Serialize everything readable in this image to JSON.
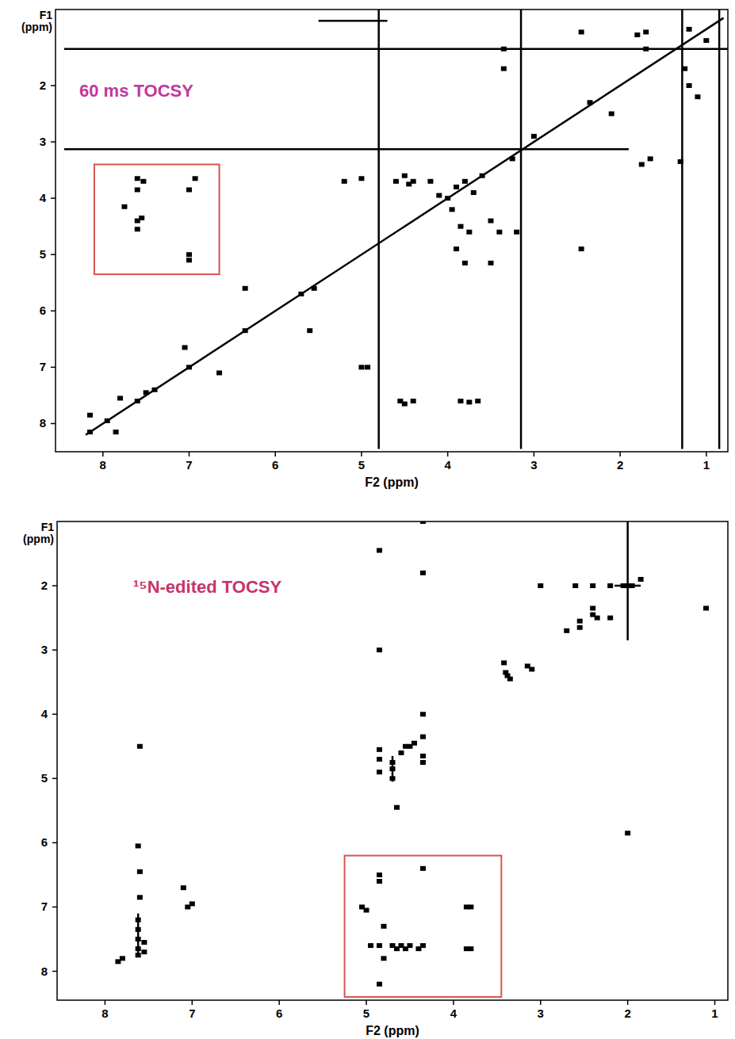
{
  "chart_data": [
    {
      "type": "scatter",
      "title": "60 ms TOCSY",
      "title_color": "#c2379e",
      "x_label": "F2 (ppm)",
      "y_label": "F1 (ppm)",
      "xlim": [
        8.55,
        0.75
      ],
      "ylim": [
        0.65,
        8.5
      ],
      "xticks": [
        8,
        7,
        6,
        5,
        4,
        3,
        2,
        1
      ],
      "yticks": [
        2,
        3,
        4,
        5,
        6,
        7,
        8
      ],
      "box": {
        "x": [
          8.1,
          6.65
        ],
        "y": [
          3.4,
          5.35
        ],
        "color": "#d9534f"
      },
      "series": [
        {
          "type": "scatter",
          "color": "#000000",
          "marker": "square",
          "x": [
            7.6,
            7.6,
            7.53,
            7.6,
            7.6,
            7.55,
            7.0,
            6.93,
            7.0,
            7.0,
            7.75,
            3.65,
            3.85,
            4.4,
            4.55,
            4.5,
            3.75,
            5.0,
            4.93,
            8.15,
            8.15,
            7.85,
            7.95,
            7.6,
            7.5,
            7.4,
            7.0,
            7.05,
            6.65,
            6.35,
            6.35,
            5.6,
            5.7,
            5.55,
            7.8,
            3.9,
            3.8,
            3.7,
            3.6,
            4.0,
            3.85,
            3.75,
            3.5,
            3.4,
            3.2,
            4.4,
            3.9,
            3.8,
            3.5,
            5.2,
            5.0,
            4.6,
            4.45,
            4.2,
            4.5,
            3.35,
            3.35,
            1.7,
            1.65,
            1.75,
            1.3,
            1.25,
            1.7,
            1.8,
            2.45,
            1.2,
            1.0,
            2.35,
            2.1,
            1.1,
            1.2,
            2.45,
            3.0,
            3.25,
            4.1,
            3.95
          ],
          "values": [
            3.65,
            3.85,
            3.7,
            4.4,
            4.55,
            4.35,
            3.85,
            3.65,
            5.0,
            5.1,
            4.15,
            7.6,
            7.6,
            7.6,
            7.6,
            7.65,
            7.62,
            7.0,
            7.0,
            8.15,
            7.85,
            8.15,
            7.95,
            7.6,
            7.45,
            7.4,
            7.0,
            6.65,
            7.1,
            6.35,
            5.6,
            6.35,
            5.7,
            5.6,
            7.55,
            3.8,
            3.7,
            3.9,
            3.6,
            4.0,
            4.5,
            4.6,
            4.4,
            4.6,
            4.6,
            3.7,
            4.9,
            5.15,
            5.15,
            3.7,
            3.65,
            3.7,
            3.75,
            3.7,
            3.6,
            1.7,
            1.35,
            1.35,
            3.3,
            3.4,
            3.35,
            1.7,
            1.05,
            1.1,
            1.05,
            1.0,
            1.2,
            2.3,
            2.5,
            2.2,
            2.0,
            4.9,
            2.9,
            3.3,
            3.95,
            4.2
          ]
        },
        {
          "type": "line",
          "color": "#000000",
          "line_style": "solid",
          "x": [
            8.2,
            0.8
          ],
          "values": [
            8.2,
            0.8
          ]
        },
        {
          "type": "line",
          "color": "#000000",
          "line_style": "solid",
          "x": [
            8.45,
            0.75
          ],
          "values": [
            1.35,
            1.35
          ]
        },
        {
          "type": "line",
          "color": "#000000",
          "line_style": "solid",
          "x": [
            8.45,
            1.9
          ],
          "values": [
            3.13,
            3.13
          ]
        },
        {
          "type": "line",
          "color": "#000000",
          "line_style": "solid",
          "x": [
            5.5,
            4.7
          ],
          "values": [
            0.85,
            0.85
          ]
        },
        {
          "type": "line",
          "color": "#000000",
          "line_style": "solid",
          "x": [
            4.8,
            4.8
          ],
          "values": [
            0.65,
            8.45
          ]
        },
        {
          "type": "line",
          "color": "#000000",
          "line_style": "solid",
          "x": [
            3.15,
            3.15
          ],
          "values": [
            0.65,
            8.45
          ]
        },
        {
          "type": "line",
          "color": "#000000",
          "line_style": "solid",
          "x": [
            1.28,
            1.28
          ],
          "values": [
            0.65,
            8.45
          ]
        },
        {
          "type": "line",
          "color": "#000000",
          "line_style": "solid",
          "x": [
            0.85,
            0.85
          ],
          "values": [
            0.65,
            8.45
          ]
        }
      ]
    },
    {
      "type": "scatter",
      "title": "¹⁵N-edited TOCSY",
      "title_color": "#c8336c",
      "x_label": "F2 (ppm)",
      "y_label": "F1 (ppm)",
      "xlim": [
        8.55,
        0.85
      ],
      "ylim": [
        1.0,
        8.45
      ],
      "xticks": [
        8,
        7,
        6,
        5,
        4,
        3,
        2,
        1
      ],
      "yticks": [
        2,
        3,
        4,
        5,
        6,
        7,
        8
      ],
      "box": {
        "x": [
          5.25,
          3.45
        ],
        "y": [
          6.2,
          8.4
        ],
        "color": "#d9534f"
      },
      "series": [
        {
          "type": "scatter",
          "color": "#000000",
          "marker": "square",
          "x": [
            7.62,
            7.62,
            7.62,
            7.62,
            7.62,
            7.55,
            7.55,
            7.6,
            7.62,
            7.6,
            7.6,
            7.0,
            7.05,
            7.1,
            7.85,
            7.8,
            5.05,
            5.0,
            4.85,
            4.85,
            4.8,
            4.85,
            4.85,
            4.8,
            4.65,
            4.6,
            4.55,
            4.5,
            4.4,
            4.35,
            4.35,
            3.85,
            3.8,
            3.85,
            3.8,
            4.7,
            4.95,
            4.85,
            4.85,
            4.85,
            4.85,
            4.85,
            4.7,
            4.7,
            4.7,
            4.6,
            4.55,
            4.5,
            4.45,
            4.35,
            4.35,
            4.35,
            4.35,
            4.35,
            4.35,
            4.65,
            3.4,
            3.42,
            3.38,
            3.35,
            3.15,
            3.1,
            2.4,
            2.4,
            2.35,
            2.55,
            2.7,
            2.55,
            2.2,
            2.0,
            2.05,
            1.95,
            1.85,
            2.2,
            2.4,
            2.6,
            3.0,
            1.1,
            2.0
          ],
          "values": [
            7.2,
            7.35,
            7.5,
            7.65,
            7.75,
            7.55,
            7.7,
            4.5,
            6.05,
            6.85,
            6.45,
            6.95,
            7.0,
            6.7,
            7.85,
            7.8,
            7.0,
            7.05,
            6.5,
            6.6,
            7.3,
            7.6,
            8.2,
            7.8,
            7.65,
            7.6,
            7.65,
            7.6,
            7.65,
            7.6,
            6.4,
            7.0,
            7.0,
            7.65,
            7.65,
            7.6,
            7.6,
            1.45,
            3.0,
            4.55,
            4.7,
            4.9,
            4.75,
            4.85,
            5.0,
            4.6,
            4.5,
            4.5,
            4.45,
            4.35,
            4.65,
            4.0,
            1.0,
            1.8,
            4.75,
            5.45,
            3.35,
            3.2,
            3.4,
            3.45,
            3.25,
            3.3,
            2.35,
            2.45,
            2.5,
            2.65,
            2.7,
            2.55,
            2.5,
            2.0,
            2.0,
            2.0,
            1.9,
            2.0,
            2.0,
            2.0,
            2.0,
            2.35,
            5.85
          ]
        },
        {
          "type": "line",
          "color": "#000000",
          "line_style": "solid",
          "x": [
            2.0,
            2.0
          ],
          "values": [
            1.0,
            2.85
          ]
        },
        {
          "type": "line",
          "color": "#000000",
          "line_style": "solid",
          "x": [
            2.15,
            1.85
          ],
          "values": [
            2.0,
            2.0
          ]
        },
        {
          "type": "line",
          "color": "#000000",
          "line_style": "solid",
          "x": [
            7.62,
            7.62
          ],
          "values": [
            7.1,
            7.75
          ]
        },
        {
          "type": "line",
          "color": "#000000",
          "line_style": "solid",
          "x": [
            4.7,
            4.7
          ],
          "values": [
            4.65,
            5.05
          ]
        }
      ]
    }
  ]
}
